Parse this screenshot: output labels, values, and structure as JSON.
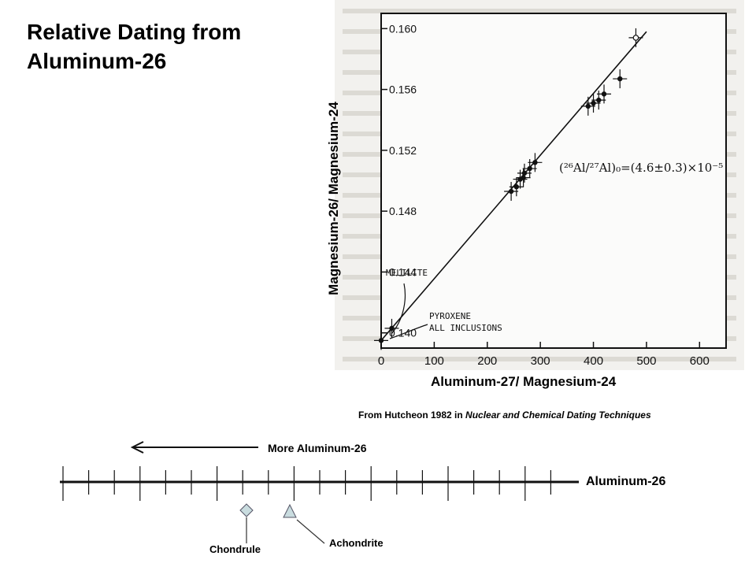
{
  "title_line1": "Relative Dating from",
  "title_line2": "Aluminum-26",
  "chart_data": {
    "type": "scatter",
    "xlabel": "Aluminum-27/ Magnesium-24",
    "ylabel": "Magnesium-26/ Magnesium-24",
    "xlim": [
      0,
      650
    ],
    "ylim": [
      0.139,
      0.161
    ],
    "x_ticks": [
      "0",
      "100",
      "200",
      "300",
      "400",
      "500",
      "600"
    ],
    "y_ticks": [
      "0.140",
      "0.144",
      "0.148",
      "0.152",
      "0.156",
      "0.160"
    ],
    "series": [
      {
        "x": [
          0,
          20,
          245,
          255,
          262,
          268,
          270,
          280,
          290,
          390,
          400,
          410,
          420,
          450,
          480
        ],
        "y": [
          0.1395,
          0.1403,
          0.1493,
          0.1496,
          0.1501,
          0.1502,
          0.1505,
          0.1508,
          0.1512,
          0.1549,
          0.1551,
          0.1553,
          0.1557,
          0.1567,
          0.1594
        ]
      }
    ],
    "fit_line": {
      "x": [
        0,
        500
      ],
      "y": [
        0.1395,
        0.1598
      ]
    },
    "annotations": [
      "MELILITE",
      "PYROXENE",
      "ALL INCLUSIONS"
    ],
    "equation": "(²⁶Al/²⁷Al)₀=(4.6±0.3)×10⁻⁵"
  },
  "source_prefix": "From Hutcheon 1982 in ",
  "source_title": "Nuclear and Chemical Dating Techniques",
  "scale": {
    "arrow_label": "More Aluminum-26",
    "axis_label": "Aluminum-26",
    "markers": [
      {
        "label": "Chondrule",
        "shape": "diamond",
        "color": "#c9dcdf"
      },
      {
        "label": "Achondrite",
        "shape": "triangle",
        "color": "#c9dcdf"
      }
    ]
  }
}
